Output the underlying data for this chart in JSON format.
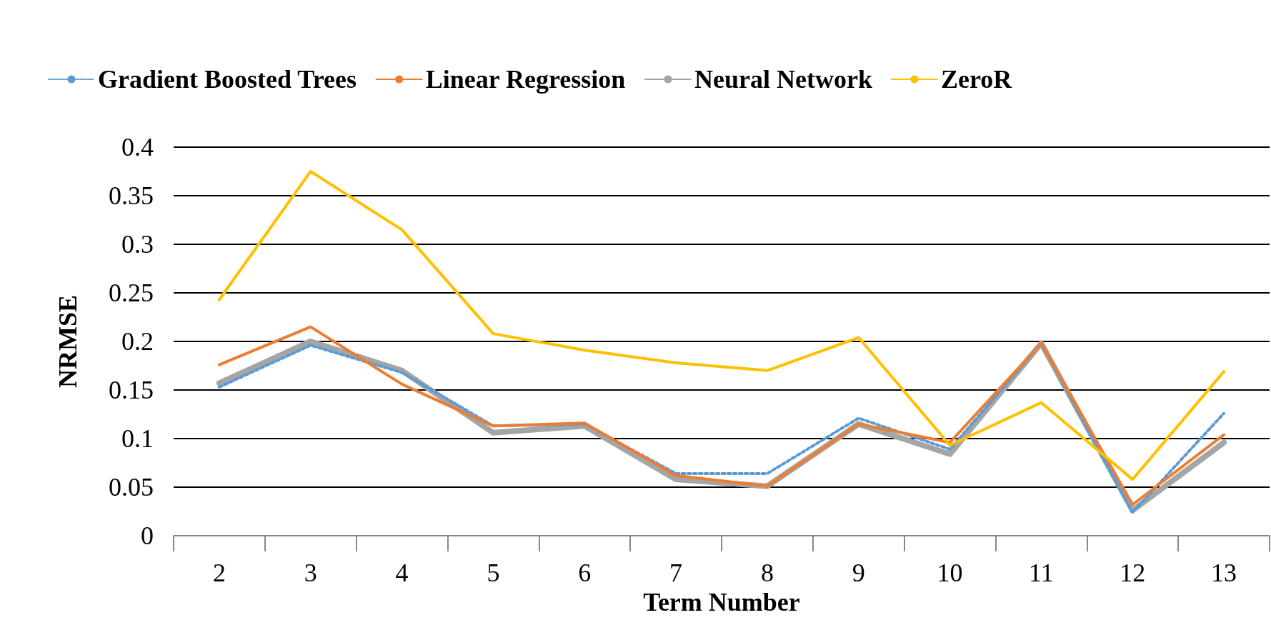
{
  "chart_data": {
    "type": "line",
    "xlabel": "Term Number",
    "ylabel": "NRMSE",
    "categories": [
      "2",
      "3",
      "4",
      "5",
      "6",
      "7",
      "8",
      "9",
      "10",
      "11",
      "12",
      "13"
    ],
    "series": [
      {
        "name": "Gradient Boosted Trees",
        "color": "#5b9bd5",
        "line_style": "dotted",
        "values": [
          0.153,
          0.196,
          0.168,
          0.113,
          0.115,
          0.064,
          0.064,
          0.121,
          0.089,
          0.198,
          0.024,
          0.126
        ]
      },
      {
        "name": "Linear Regression",
        "color": "#ed7d31",
        "line_style": "solid",
        "values": [
          0.176,
          0.215,
          0.156,
          0.113,
          0.116,
          0.062,
          0.051,
          0.115,
          0.096,
          0.198,
          0.032,
          0.104
        ]
      },
      {
        "name": "Neural Network",
        "color": "#a5a5a5",
        "line_style": "solid",
        "values": [
          0.157,
          0.2,
          0.17,
          0.106,
          0.113,
          0.058,
          0.051,
          0.115,
          0.084,
          0.198,
          0.026,
          0.096
        ]
      },
      {
        "name": "ZeroR",
        "color": "#ffc000",
        "line_style": "solid",
        "values": [
          0.243,
          0.375,
          0.315,
          0.208,
          0.191,
          0.178,
          0.17,
          0.204,
          0.093,
          0.137,
          0.058,
          0.169
        ]
      }
    ],
    "ylim": [
      0,
      0.4
    ],
    "yticks": [
      0,
      0.05,
      0.1,
      0.15,
      0.2,
      0.25,
      0.3,
      0.35,
      0.4
    ],
    "grid": "y",
    "legend": "top left",
    "marker": "none"
  }
}
